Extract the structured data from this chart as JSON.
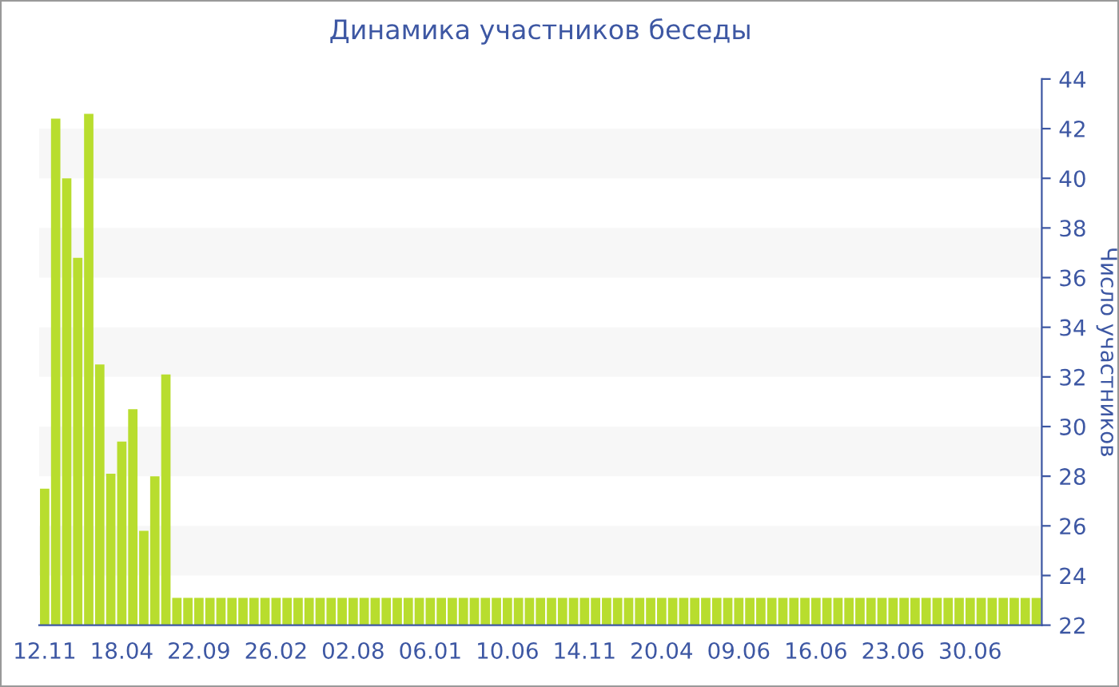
{
  "chart_data": {
    "type": "bar",
    "title": "Динамика участников беседы",
    "ylabel": "Число участников",
    "categories": [
      "12.11",
      null,
      null,
      null,
      null,
      null,
      null,
      "18.04",
      null,
      null,
      null,
      null,
      null,
      null,
      "22.09",
      null,
      null,
      null,
      null,
      null,
      null,
      "26.02",
      null,
      null,
      null,
      null,
      null,
      null,
      "02.08",
      null,
      null,
      null,
      null,
      null,
      null,
      "06.01",
      null,
      null,
      null,
      null,
      null,
      null,
      "10.06",
      null,
      null,
      null,
      null,
      null,
      null,
      "14.11",
      null,
      null,
      null,
      null,
      null,
      null,
      "20.04",
      null,
      null,
      null,
      null,
      null,
      null,
      "09.06",
      null,
      null,
      null,
      null,
      null,
      null,
      "16.06",
      null,
      null,
      null,
      null,
      null,
      null,
      "23.06",
      null,
      null,
      null,
      null,
      null,
      null,
      "30.06",
      null,
      null,
      null,
      null,
      null,
      null
    ],
    "values": [
      27.5,
      42.4,
      40.0,
      36.8,
      42.6,
      32.5,
      28.1,
      29.4,
      30.7,
      25.8,
      28.0,
      32.1,
      23.1,
      23.1,
      23.1,
      23.1,
      23.1,
      23.1,
      23.1,
      23.1,
      23.1,
      23.1,
      23.1,
      23.1,
      23.1,
      23.1,
      23.1,
      23.1,
      23.1,
      23.1,
      23.1,
      23.1,
      23.1,
      23.1,
      23.1,
      23.1,
      23.1,
      23.1,
      23.1,
      23.1,
      23.1,
      23.1,
      23.1,
      23.1,
      23.1,
      23.1,
      23.1,
      23.1,
      23.1,
      23.1,
      23.1,
      23.1,
      23.1,
      23.1,
      23.1,
      23.1,
      23.1,
      23.1,
      23.1,
      23.1,
      23.1,
      23.1,
      23.1,
      23.1,
      23.1,
      23.1,
      23.1,
      23.1,
      23.1,
      23.1,
      23.1,
      23.1,
      23.1,
      23.1,
      23.1,
      23.1,
      23.1,
      23.1,
      23.1,
      23.1,
      23.1,
      23.1,
      23.1,
      23.1,
      23.1,
      23.1,
      23.1,
      23.1,
      23.1,
      23.1,
      23.1
    ],
    "color": "#b8dd2e",
    "ylim": [
      22,
      44
    ],
    "yticks": [
      22,
      24,
      26,
      28,
      30,
      32,
      34,
      36,
      38,
      40,
      42,
      44
    ],
    "bands": [
      {
        "axis": "y",
        "from": 24,
        "to": 26,
        "color": "#f7f7f7"
      },
      {
        "axis": "y",
        "from": 28,
        "to": 30,
        "color": "#f7f7f7"
      },
      {
        "axis": "y",
        "from": 32,
        "to": 34,
        "color": "#f7f7f7"
      },
      {
        "axis": "y",
        "from": 36,
        "to": 38,
        "color": "#f7f7f7"
      },
      {
        "axis": "y",
        "from": 40,
        "to": 42,
        "color": "#f7f7f7"
      }
    ]
  }
}
